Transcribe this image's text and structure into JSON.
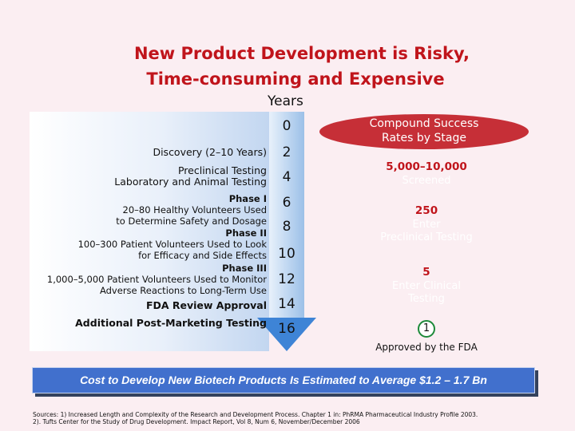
{
  "title": {
    "line1": "New Product Development is Risky,",
    "line2": "Time-consuming and Expensive"
  },
  "timeline": {
    "label": "Years",
    "years": [
      "0",
      "2",
      "4",
      "6",
      "8",
      "10",
      "12",
      "14",
      "16"
    ]
  },
  "stages": {
    "discovery": "Discovery (2–10 Years)",
    "preclinical_1": "Preclinical Testing",
    "preclinical_2": "Laboratory and Animal Testing",
    "phase1_title": "Phase I",
    "phase1_1": "20–80 Healthy Volunteers Used",
    "phase1_2": "to Determine Safety and Dosage",
    "phase2_title": "Phase II",
    "phase2_1": "100–300 Patient Volunteers Used to Look",
    "phase2_2": "for Efficacy and Side Effects",
    "phase3_title": "Phase III",
    "phase3_1": "1,000–5,000 Patient Volunteers Used to Monitor",
    "phase3_2": "Adverse Reactions to Long-Term Use",
    "fda": "FDA Review Approval",
    "post": "Additional Post-Marketing Testing"
  },
  "success": {
    "header_1": "Compound Success",
    "header_2": "Rates by Stage",
    "screened_num": "5,000–10,000",
    "screened_label": "Screened",
    "preclinical_num": "250",
    "preclinical_label_1": "Enter",
    "preclinical_label_2": "Preclinical Testing",
    "clinical_num": "5",
    "clinical_label_1": "Enter Clinical",
    "clinical_label_2": "Testing",
    "approved_num": "1",
    "approved_label": "Approved by the FDA"
  },
  "cost_banner": "Cost to Develop New Biotech Products Is Estimated to Average $1.2 – 1.7 Bn",
  "sources": {
    "line1": "Sources: 1) Increased Length and Complexity of the Research and Development Process. Chapter 1 in: PhRMA Pharmaceutical Industry Profile 2003.",
    "line2": "2). Tufts Center for the Study of Drug Development. Impact Report, Vol 8, Num 6, November/December 2006"
  },
  "colors": {
    "background": "#fbeef2",
    "title_red": "#c0141b",
    "oval_red": "#c62f37",
    "banner_blue": "#4170cd",
    "arrow_blue": "#3e84d6"
  }
}
